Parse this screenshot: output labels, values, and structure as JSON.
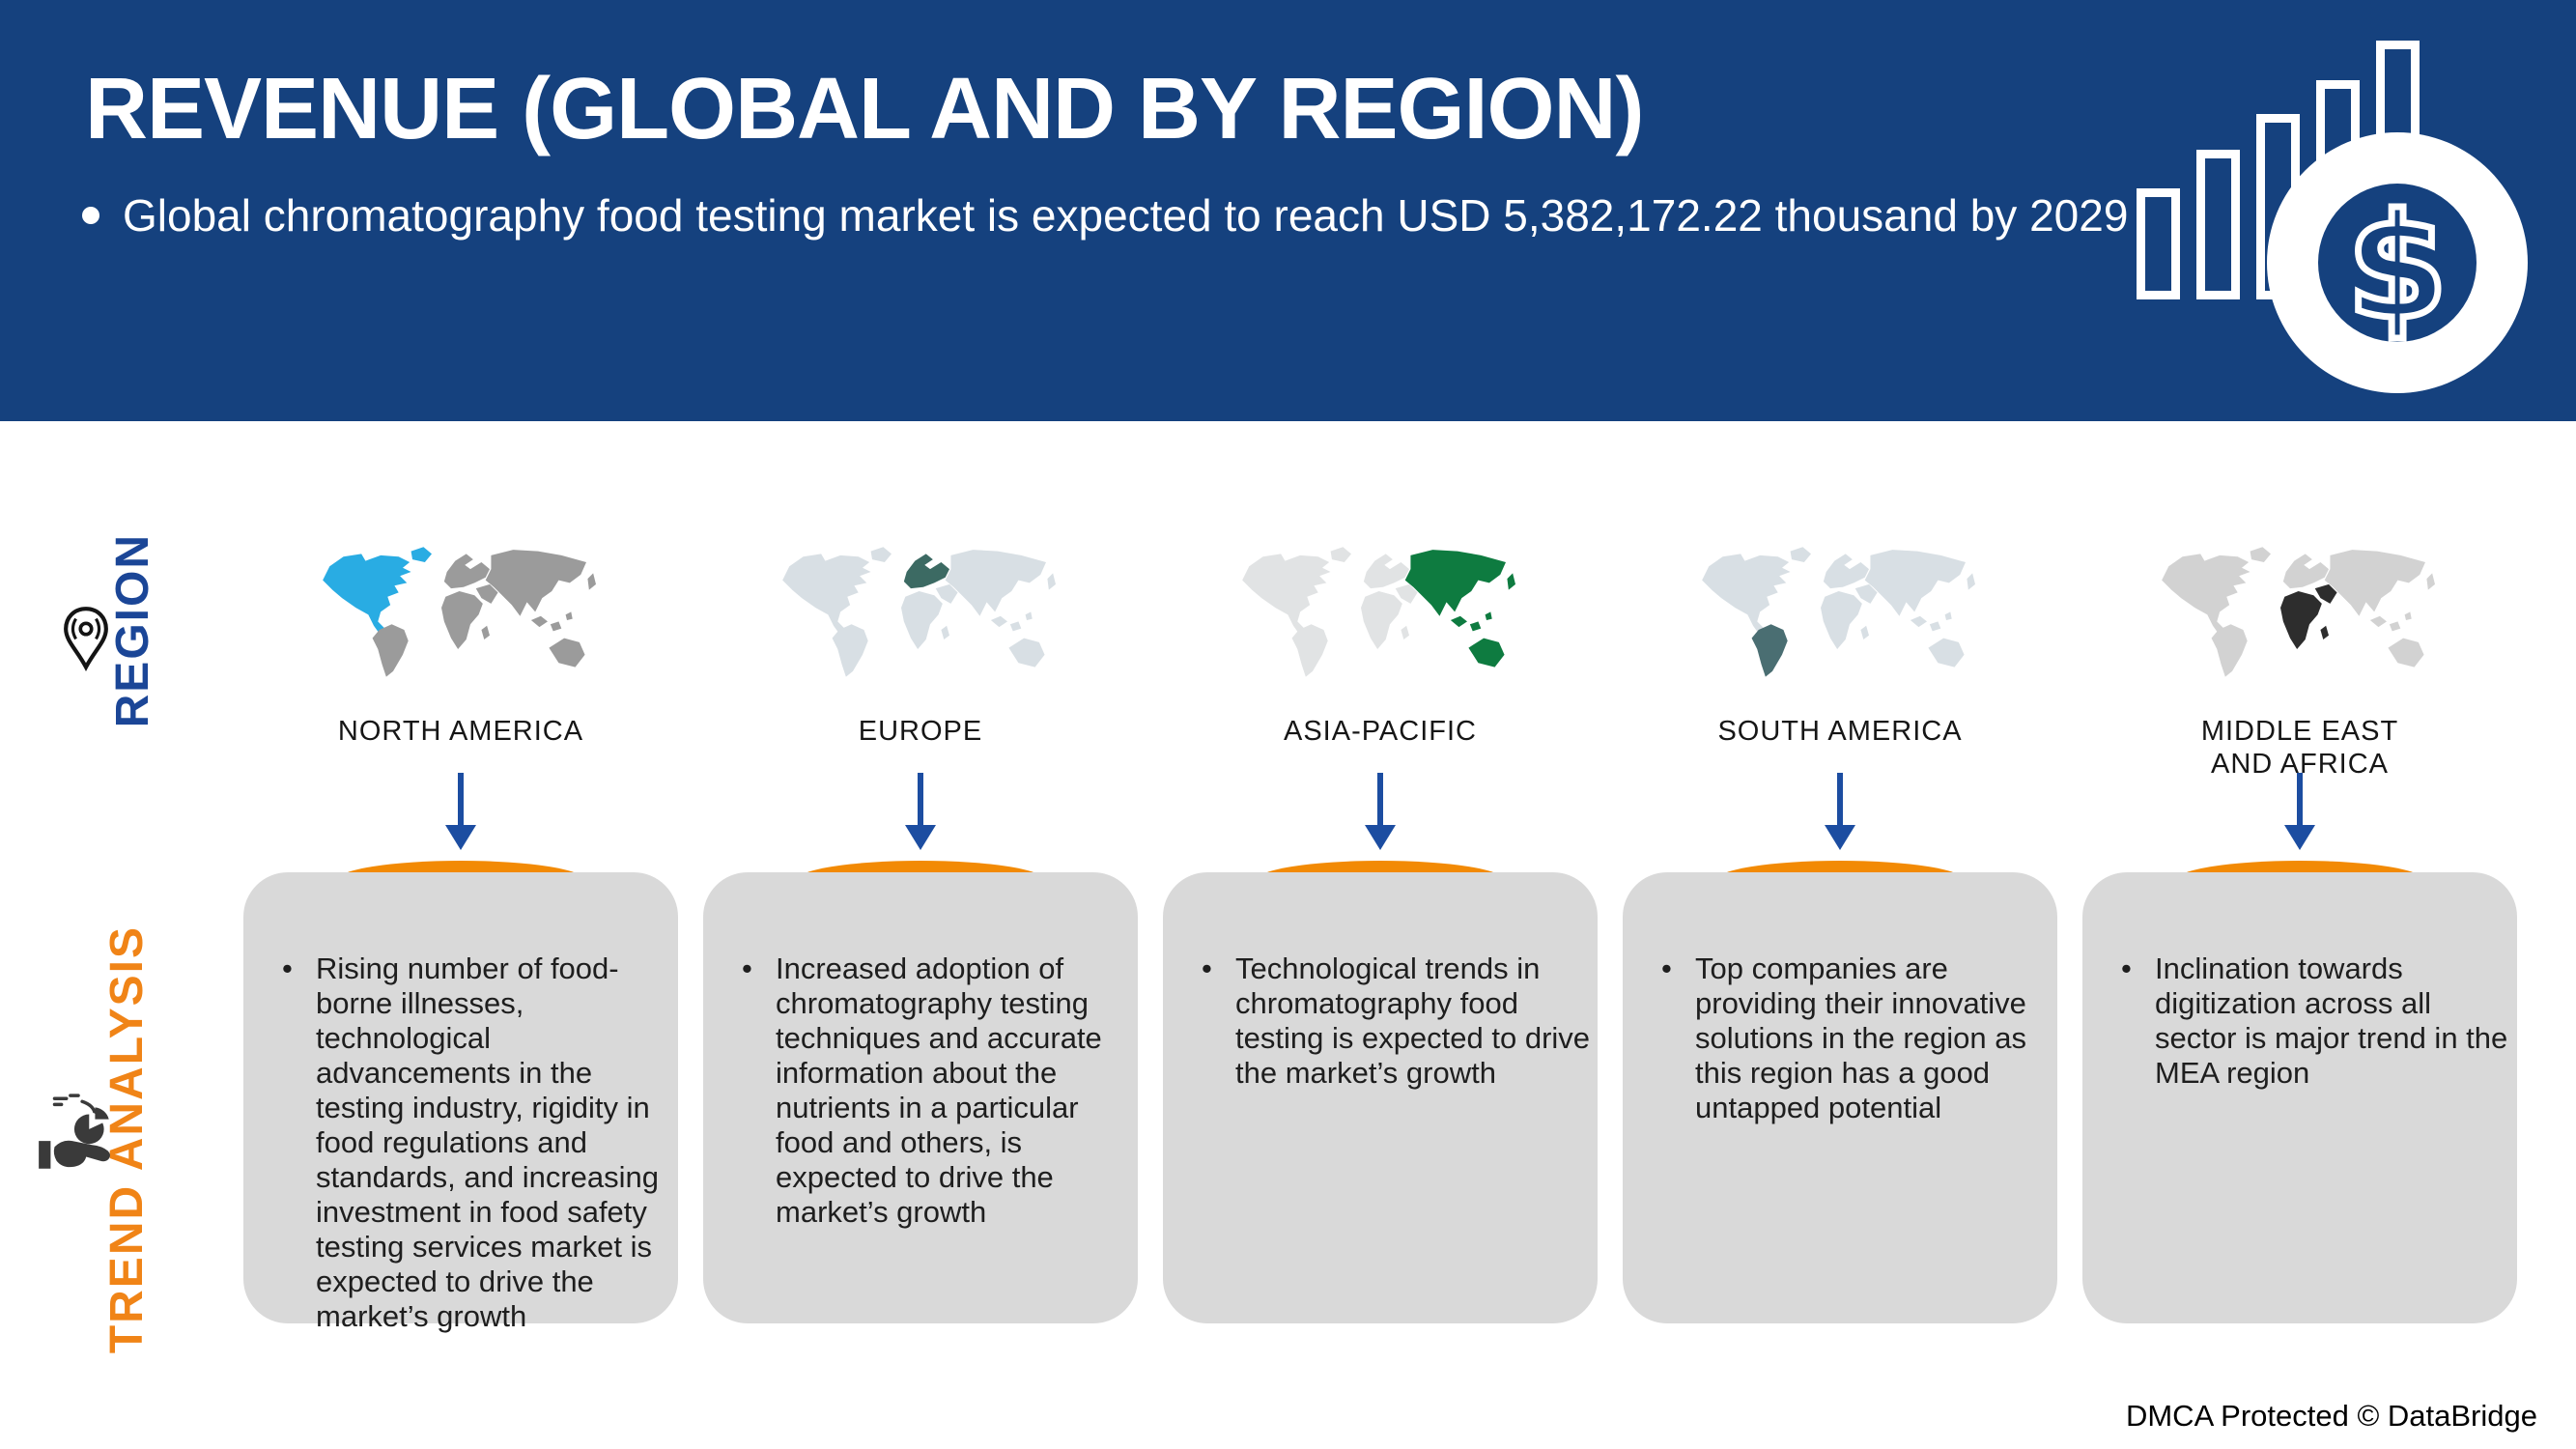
{
  "header": {
    "title": "REVENUE (GLOBAL AND BY REGION)",
    "subtitle": "Global chromatography food testing market is expected to reach USD 5,382,172.22 thousand by 2029",
    "bg_color": "#15417E",
    "icon": "bar-chart-dollar-icon"
  },
  "region_section": {
    "label": "REGION",
    "label_color": "#1B4697",
    "icon": "location-pin-icon",
    "regions": [
      {
        "name": "NORTH AMERICA",
        "highlight": "north-america",
        "highlight_color": "#29ACE3",
        "base_color": "#9B9B9B"
      },
      {
        "name": "EUROPE",
        "highlight": "europe",
        "highlight_color": "#3C6A63",
        "base_color": "#D8DFE4"
      },
      {
        "name": "ASIA-PACIFIC",
        "highlight": "asia-pacific",
        "highlight_color": "#0E7B40",
        "base_color": "#E1E3E4"
      },
      {
        "name": "SOUTH AMERICA",
        "highlight": "south-america",
        "highlight_color": "#4A6E72",
        "base_color": "#D8DFE4"
      },
      {
        "name": "MIDDLE EAST AND AFRICA",
        "highlight": "middle-east-africa",
        "highlight_color": "#2D2D2D",
        "base_color": "#D2D2D2"
      }
    ]
  },
  "trend_section": {
    "label": "TREND ANALYSIS",
    "label_color": "#F08417",
    "icon": "hand-pie-chart-icon",
    "trends": [
      "Rising number of food-borne illnesses, technological advancements in the testing industry, rigidity in food regulations and standards, and increasing investment in food safety testing services market is expected to drive the market’s growth",
      "Increased adoption of chromatography testing techniques and accurate information about the nutrients in a particular food and others, is expected to drive the market’s growth",
      "Technological trends in chromatography food testing is expected to drive the market’s growth",
      "Top companies are providing their innovative solutions in the region as this region has a good untapped potential",
      "Inclination towards digitization across all sector is major trend in the MEA region"
    ]
  },
  "accent": {
    "arrow_color": "#1C4DA1",
    "card_color": "#D9D9D9",
    "tab_color": "#F28A05"
  },
  "footer": {
    "text": "DMCA Protected © DataBridge"
  }
}
